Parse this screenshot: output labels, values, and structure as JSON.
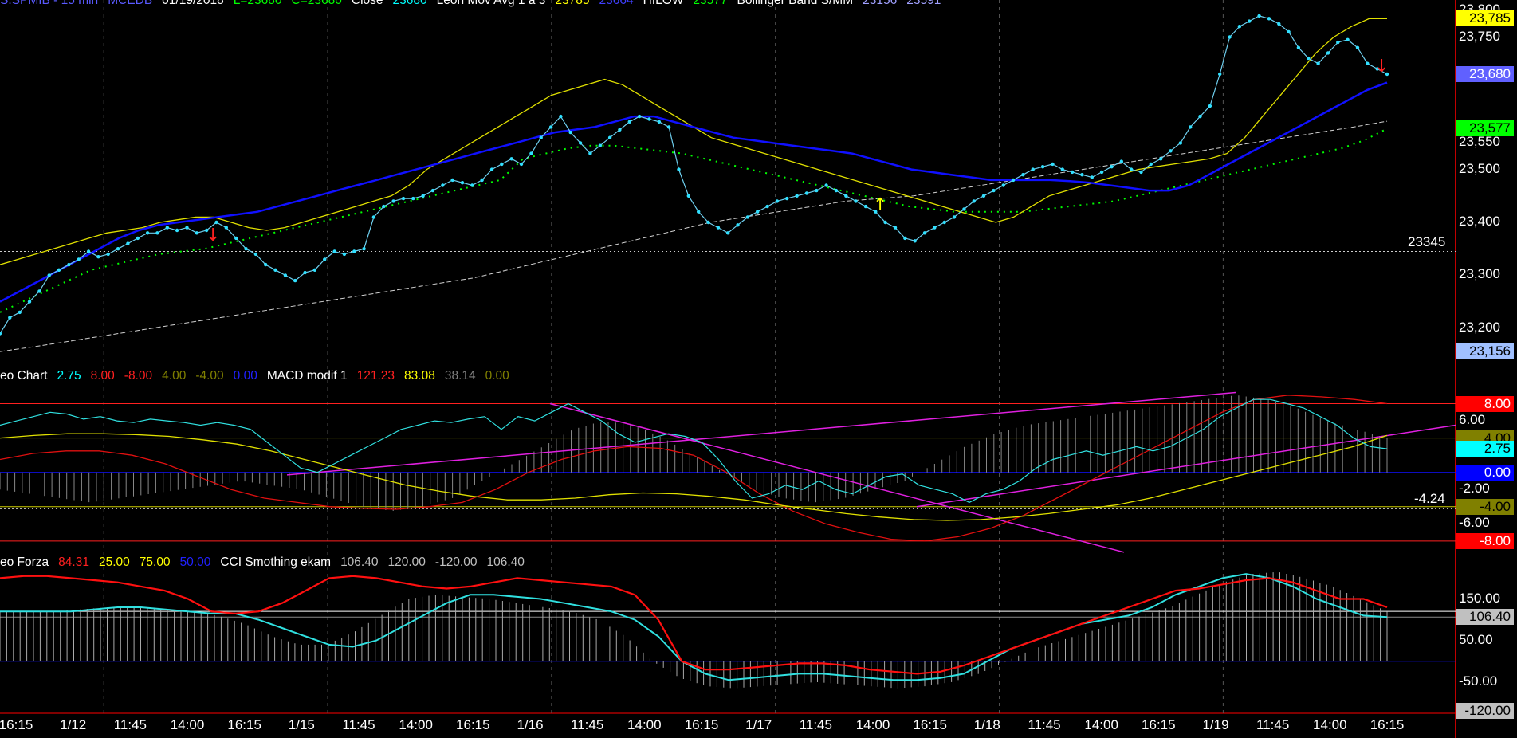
{
  "headers": {
    "price": [
      {
        "text": "S.SPMIB - 15 min",
        "color": "#5a5aff"
      },
      {
        "text": "MCEDB",
        "color": "#5a5aff"
      },
      {
        "text": "01/19/2018",
        "color": "#ffffff"
      },
      {
        "text": "L=23680",
        "color": "#00ff00"
      },
      {
        "text": "C=23680",
        "color": "#00ff00"
      },
      {
        "text": "Close",
        "color": "#ffffff"
      },
      {
        "text": "23680",
        "color": "#00ffff"
      },
      {
        "text": "Leon Mov Avg 1 a 3",
        "color": "#ffffff"
      },
      {
        "text": "23785",
        "color": "#ffff00"
      },
      {
        "text": "23664",
        "color": "#4040ff"
      },
      {
        "text": "HILOW",
        "color": "#ffffff"
      },
      {
        "text": "23577",
        "color": "#00ff00"
      },
      {
        "text": "Bollinger Band S/MM",
        "color": "#ffffff"
      },
      {
        "text": "23156",
        "color": "#a0a0ff"
      },
      {
        "text": "23591",
        "color": "#a0a0ff"
      }
    ],
    "macd": [
      {
        "text": "eo Chart",
        "color": "#ffffff"
      },
      {
        "text": "2.75",
        "color": "#00ffff"
      },
      {
        "text": "8.00",
        "color": "#ff2020"
      },
      {
        "text": "-8.00",
        "color": "#ff2020"
      },
      {
        "text": "4.00",
        "color": "#808000"
      },
      {
        "text": "-4.00",
        "color": "#808000"
      },
      {
        "text": "0.00",
        "color": "#2020ff"
      },
      {
        "text": "MACD modif 1",
        "color": "#ffffff"
      },
      {
        "text": "121.23",
        "color": "#ff2020"
      },
      {
        "text": "83.08",
        "color": "#ffff00"
      },
      {
        "text": "38.14",
        "color": "#808080"
      },
      {
        "text": "0.00",
        "color": "#808000"
      }
    ],
    "forza": [
      {
        "text": "eo Forza",
        "color": "#ffffff"
      },
      {
        "text": "84.31",
        "color": "#ff2020"
      },
      {
        "text": "25.00",
        "color": "#ffff00"
      },
      {
        "text": "75.00",
        "color": "#ffff00"
      },
      {
        "text": "50.00",
        "color": "#2020ff"
      },
      {
        "text": "CCI Smothing ekam",
        "color": "#ffffff"
      },
      {
        "text": "106.40",
        "color": "#c0c0c0"
      },
      {
        "text": "120.00",
        "color": "#c0c0c0"
      },
      {
        "text": "-120.00",
        "color": "#c0c0c0"
      },
      {
        "text": "106.40",
        "color": "#c0c0c0"
      }
    ]
  },
  "price_ticks": [
    "23,800",
    "23,750",
    "23,550",
    "23,500",
    "23,400",
    "23,300",
    "23,200"
  ],
  "price_tags": [
    {
      "text": "23,785",
      "bg": "#ffff00",
      "fg": "#000000",
      "value": 23785
    },
    {
      "text": "23,680",
      "bg": "#6060ff",
      "fg": "#ffffff",
      "value": 23680
    },
    {
      "text": "23,577",
      "bg": "#00ff00",
      "fg": "#000000",
      "value": 23577
    },
    {
      "text": "23,156",
      "bg": "#a0c0ff",
      "fg": "#000000",
      "value": 23156
    }
  ],
  "price_note": "23345",
  "macd_ticks": [
    "6.00",
    "-2.00",
    "-6.00"
  ],
  "macd_tags": [
    {
      "text": "8.00",
      "bg": "#ff0000",
      "fg": "#ffffff",
      "value": 8
    },
    {
      "text": "4.00",
      "bg": "#808000",
      "fg": "#000000",
      "value": 4
    },
    {
      "text": "2.75",
      "bg": "#00ffff",
      "fg": "#000000",
      "value": 2.75
    },
    {
      "text": "0.00",
      "bg": "#0000ff",
      "fg": "#ffffff",
      "value": 0
    },
    {
      "text": "-4.00",
      "bg": "#808000",
      "fg": "#000000",
      "value": -4
    },
    {
      "text": "-8.00",
      "bg": "#ff0000",
      "fg": "#ffffff",
      "value": -8
    }
  ],
  "macd_note": "-4.24",
  "forza_ticks": [
    "150.00",
    "50.00",
    "-50.00"
  ],
  "forza_tags": [
    {
      "text": "106.40",
      "bg": "#c0c0c0",
      "fg": "#000000",
      "value": 106.4
    },
    {
      "text": "-120.00",
      "bg": "#c0c0c0",
      "fg": "#000000",
      "value": -120
    }
  ],
  "x_labels": [
    "16:15",
    "1/12",
    "11:45",
    "14:00",
    "16:15",
    "1/15",
    "11:45",
    "14:00",
    "16:15",
    "1/16",
    "11:45",
    "14:00",
    "16:15",
    "1/17",
    "11:45",
    "14:00",
    "16:15",
    "1/18",
    "11:45",
    "14:00",
    "16:15",
    "1/19",
    "11:45",
    "14:00",
    "16:15"
  ],
  "chart_data": {
    "type": "line",
    "title": "S.SPMIB - 15 min",
    "price": {
      "ylim": [
        23120,
        23820
      ],
      "close": [
        23190,
        23220,
        23230,
        23250,
        23270,
        23300,
        23310,
        23320,
        23330,
        23345,
        23335,
        23340,
        23350,
        23360,
        23370,
        23380,
        23380,
        23390,
        23385,
        23390,
        23380,
        23385,
        23400,
        23390,
        23370,
        23350,
        23340,
        23320,
        23310,
        23300,
        23290,
        23305,
        23310,
        23330,
        23345,
        23340,
        23345,
        23350,
        23410,
        23430,
        23440,
        23445,
        23445,
        23450,
        23460,
        23470,
        23480,
        23475,
        23470,
        23480,
        23500,
        23510,
        23520,
        23510,
        23530,
        23560,
        23580,
        23600,
        23570,
        23550,
        23530,
        23545,
        23560,
        23575,
        23590,
        23600,
        23595,
        23590,
        23580,
        23500,
        23450,
        23420,
        23400,
        23390,
        23380,
        23395,
        23410,
        23420,
        23430,
        23440,
        23445,
        23450,
        23455,
        23460,
        23470,
        23460,
        23450,
        23440,
        23430,
        23420,
        23400,
        23390,
        23370,
        23365,
        23380,
        23390,
        23400,
        23410,
        23425,
        23440,
        23450,
        23460,
        23470,
        23480,
        23490,
        23500,
        23505,
        23510,
        23500,
        23495,
        23490,
        23485,
        23495,
        23505,
        23515,
        23500,
        23495,
        23510,
        23520,
        23535,
        23550,
        23580,
        23600,
        23620,
        23680,
        23750,
        23770,
        23780,
        23790,
        23785,
        23775,
        23760,
        23730,
        23710,
        23700,
        23720,
        23740,
        23745,
        23730,
        23700,
        23690,
        23680
      ],
      "bollinger_upper": [
        23320,
        23330,
        23340,
        23350,
        23360,
        23370,
        23380,
        23385,
        23390,
        23400,
        23405,
        23410,
        23410,
        23400,
        23390,
        23385,
        23390,
        23400,
        23410,
        23420,
        23430,
        23440,
        23450,
        23470,
        23500,
        23520,
        23540,
        23560,
        23580,
        23600,
        23620,
        23640,
        23650,
        23660,
        23670,
        23660,
        23640,
        23620,
        23600,
        23580,
        23560,
        23550,
        23540,
        23530,
        23520,
        23510,
        23500,
        23490,
        23480,
        23470,
        23460,
        23450,
        23440,
        23430,
        23420,
        23410,
        23400,
        23410,
        23430,
        23450,
        23460,
        23470,
        23480,
        23490,
        23500,
        23505,
        23510,
        23515,
        23520,
        23530,
        23560,
        23600,
        23640,
        23680,
        23720,
        23750,
        23770,
        23785,
        23785
      ],
      "mov_avg": [
        23250,
        23270,
        23290,
        23310,
        23330,
        23350,
        23370,
        23385,
        23395,
        23400,
        23405,
        23410,
        23415,
        23420,
        23430,
        23440,
        23450,
        23460,
        23470,
        23480,
        23490,
        23500,
        23510,
        23520,
        23530,
        23540,
        23550,
        23560,
        23570,
        23575,
        23580,
        23590,
        23600,
        23600,
        23590,
        23580,
        23570,
        23560,
        23555,
        23550,
        23545,
        23540,
        23535,
        23530,
        23520,
        23510,
        23500,
        23495,
        23490,
        23485,
        23480,
        23480,
        23480,
        23480,
        23478,
        23475,
        23470,
        23465,
        23460,
        23460,
        23470,
        23490,
        23510,
        23530,
        23550,
        23570,
        23590,
        23610,
        23630,
        23650,
        23664
      ],
      "hilow": [
        23230,
        23250,
        23270,
        23290,
        23310,
        23320,
        23330,
        23340,
        23345,
        23350,
        23360,
        23370,
        23380,
        23390,
        23400,
        23410,
        23420,
        23430,
        23440,
        23450,
        23460,
        23470,
        23480,
        23520,
        23530,
        23540,
        23545,
        23545,
        23540,
        23535,
        23530,
        23520,
        23510,
        23500,
        23490,
        23480,
        23470,
        23460,
        23450,
        23440,
        23430,
        23425,
        23420,
        23420,
        23420,
        23420,
        23425,
        23430,
        23435,
        23440,
        23450,
        23460,
        23470,
        23480,
        23490,
        23500,
        23510,
        23520,
        23530,
        23540,
        23555,
        23577
      ],
      "bollinger_lower": [
        23156,
        23165,
        23175,
        23185,
        23195,
        23205,
        23215,
        23225,
        23235,
        23245,
        23255,
        23265,
        23275,
        23285,
        23295,
        23310,
        23325,
        23340,
        23355,
        23370,
        23385,
        23400,
        23410,
        23420,
        23430,
        23440,
        23445,
        23450,
        23460,
        23470,
        23480,
        23490,
        23500,
        23510,
        23520,
        23530,
        23540,
        23550,
        23560,
        23570,
        23580,
        23591
      ]
    },
    "macd": {
      "ylim": [
        -9.5,
        10
      ],
      "osc": [
        5.5,
        6.0,
        6.5,
        7.0,
        6.8,
        6.2,
        6.5,
        6.0,
        5.8,
        6.2,
        6.0,
        5.8,
        5.5,
        5.8,
        5.5,
        5.0,
        3.5,
        2.0,
        0.5,
        0.0,
        1.0,
        2.0,
        3.0,
        4.0,
        5.0,
        5.5,
        6.0,
        5.8,
        6.2,
        6.5,
        5.0,
        6.5,
        6.0,
        7.0,
        8.0,
        7.0,
        6.0,
        4.5,
        3.5,
        4.0,
        4.5,
        4.2,
        3.5,
        1.5,
        -1.0,
        -3.0,
        -2.5,
        -1.5,
        -2.0,
        -1.0,
        -2.0,
        -2.5,
        -1.5,
        -0.5,
        -0.2,
        -1.5,
        -2.0,
        -2.5,
        -3.5,
        -2.5,
        -2.0,
        -1.0,
        0.5,
        1.5,
        2.0,
        2.5,
        2.0,
        2.5,
        3.0,
        2.5,
        3.0,
        4.0,
        5.0,
        6.5,
        7.5,
        8.5,
        8.5,
        8.0,
        7.5,
        6.5,
        5.5,
        4.0,
        3.0,
        2.75
      ],
      "signal": [
        4.0,
        4.3,
        4.5,
        4.5,
        4.4,
        4.2,
        3.8,
        3.3,
        2.5,
        1.5,
        0.5,
        -0.5,
        -1.5,
        -2.2,
        -2.8,
        -3.2,
        -3.2,
        -3.0,
        -2.6,
        -2.4,
        -2.5,
        -2.8,
        -3.2,
        -3.8,
        -4.3,
        -4.8,
        -5.2,
        -5.5,
        -5.6,
        -5.5,
        -5.2,
        -4.8,
        -4.3,
        -3.8,
        -3.0,
        -2.0,
        -1.0,
        0.0,
        1.0,
        2.0,
        3.0,
        4.3
      ],
      "red": [
        1.5,
        2.2,
        2.5,
        2.5,
        2.0,
        1.0,
        -0.5,
        -2.0,
        -3.0,
        -3.5,
        -4.0,
        -4.2,
        -4.3,
        -4.0,
        -3.5,
        -2.0,
        0.0,
        1.5,
        2.5,
        3.0,
        2.8,
        2.0,
        0.0,
        -2.5,
        -4.5,
        -6.0,
        -7.0,
        -7.8,
        -8.0,
        -7.5,
        -6.5,
        -5.0,
        -3.0,
        -1.0,
        1.0,
        3.0,
        5.0,
        7.0,
        8.5,
        9.0,
        8.8,
        8.5,
        8.0
      ],
      "hist": [
        -2,
        -2.5,
        -3,
        -3.5,
        -3,
        -2.5,
        -2,
        -1.5,
        -1,
        -1.5,
        -2,
        -3,
        -4,
        -4.5,
        -4,
        -3,
        -1,
        1,
        3,
        5,
        6,
        5.5,
        4,
        2,
        0,
        -2,
        -3,
        -3.5,
        -3,
        -2,
        -1,
        1,
        3,
        4.5,
        5.5,
        6,
        6.5,
        7,
        7.5,
        8,
        8.5,
        9,
        8.5,
        7.5,
        6,
        5,
        4
      ]
    },
    "forza": {
      "ylim": [
        -125,
        220
      ],
      "red": [
        200,
        205,
        205,
        200,
        195,
        190,
        180,
        170,
        150,
        120,
        115,
        120,
        140,
        170,
        200,
        205,
        200,
        190,
        180,
        175,
        180,
        190,
        200,
        195,
        190,
        185,
        180,
        160,
        100,
        0,
        -20,
        -20,
        -15,
        -10,
        -5,
        -5,
        -10,
        -20,
        -25,
        -30,
        -25,
        -10,
        10,
        30,
        50,
        70,
        90,
        110,
        130,
        150,
        170,
        175,
        185,
        195,
        200,
        190,
        170,
        150,
        150,
        130
      ],
      "cci": [
        120,
        120,
        120,
        120,
        125,
        130,
        130,
        125,
        120,
        115,
        115,
        100,
        80,
        60,
        40,
        35,
        50,
        80,
        110,
        140,
        160,
        160,
        155,
        150,
        140,
        130,
        120,
        100,
        60,
        0,
        -30,
        -45,
        -40,
        -35,
        -30,
        -30,
        -35,
        -40,
        -45,
        -45,
        -40,
        -30,
        0,
        30,
        50,
        70,
        90,
        100,
        110,
        130,
        160,
        180,
        200,
        210,
        200,
        180,
        150,
        130,
        110,
        106.4
      ],
      "hist": [
        120,
        120,
        120,
        125,
        130,
        130,
        125,
        120,
        110,
        90,
        60,
        40,
        40,
        70,
        110,
        150,
        160,
        155,
        150,
        140,
        130,
        120,
        100,
        60,
        0,
        -40,
        -60,
        -65,
        -60,
        -55,
        -50,
        -55,
        -60,
        -65,
        -60,
        -50,
        -30,
        0,
        30,
        50,
        70,
        90,
        110,
        130,
        160,
        190,
        210,
        215,
        200,
        180,
        150,
        120
      ]
    },
    "x_tick_labels": [
      "16:15",
      "1/12",
      "11:45",
      "14:00",
      "16:15",
      "1/15",
      "11:45",
      "14:00",
      "16:15",
      "1/16",
      "11:45",
      "14:00",
      "16:15",
      "1/17",
      "11:45",
      "14:00",
      "16:15",
      "1/18",
      "11:45",
      "14:00",
      "16:15",
      "1/19",
      "11:45",
      "14:00",
      "16:15"
    ]
  }
}
